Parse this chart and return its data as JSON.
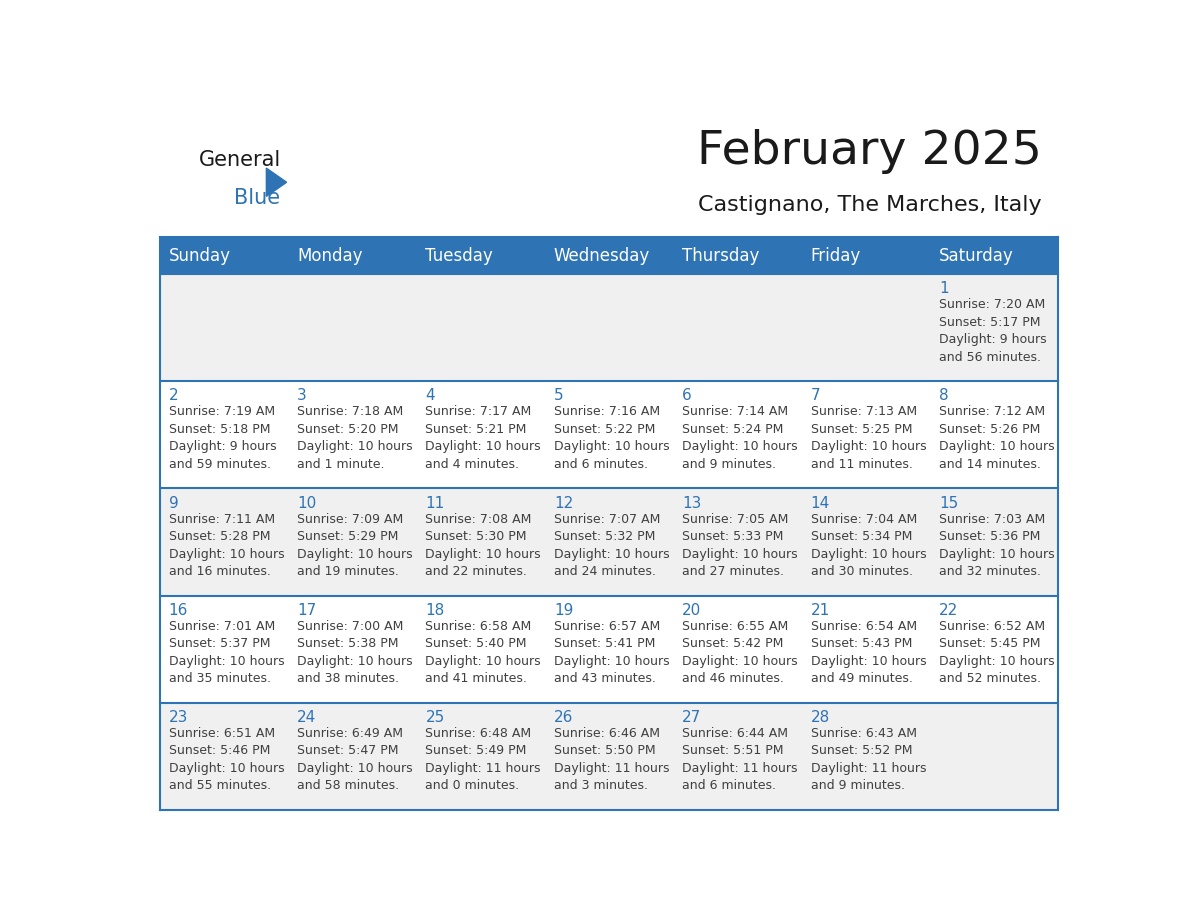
{
  "title": "February 2025",
  "subtitle": "Castignano, The Marches, Italy",
  "header_bg_color": "#2E74B5",
  "header_text_color": "#FFFFFF",
  "day_names": [
    "Sunday",
    "Monday",
    "Tuesday",
    "Wednesday",
    "Thursday",
    "Friday",
    "Saturday"
  ],
  "alt_row_color": "#F0F0F0",
  "white_row_color": "#FFFFFF",
  "border_color": "#2E74B5",
  "date_text_color": "#2E74B5",
  "info_text_color": "#404040",
  "title_color": "#1A1A1A",
  "subtitle_color": "#1A1A1A",
  "logo_general_color": "#1A1A1A",
  "logo_blue_color": "#2E74B5",
  "calendar_data": [
    [
      null,
      null,
      null,
      null,
      null,
      null,
      1
    ],
    [
      2,
      3,
      4,
      5,
      6,
      7,
      8
    ],
    [
      9,
      10,
      11,
      12,
      13,
      14,
      15
    ],
    [
      16,
      17,
      18,
      19,
      20,
      21,
      22
    ],
    [
      23,
      24,
      25,
      26,
      27,
      28,
      null
    ]
  ],
  "sunrise_data": {
    "1": "Sunrise: 7:20 AM\nSunset: 5:17 PM\nDaylight: 9 hours\nand 56 minutes.",
    "2": "Sunrise: 7:19 AM\nSunset: 5:18 PM\nDaylight: 9 hours\nand 59 minutes.",
    "3": "Sunrise: 7:18 AM\nSunset: 5:20 PM\nDaylight: 10 hours\nand 1 minute.",
    "4": "Sunrise: 7:17 AM\nSunset: 5:21 PM\nDaylight: 10 hours\nand 4 minutes.",
    "5": "Sunrise: 7:16 AM\nSunset: 5:22 PM\nDaylight: 10 hours\nand 6 minutes.",
    "6": "Sunrise: 7:14 AM\nSunset: 5:24 PM\nDaylight: 10 hours\nand 9 minutes.",
    "7": "Sunrise: 7:13 AM\nSunset: 5:25 PM\nDaylight: 10 hours\nand 11 minutes.",
    "8": "Sunrise: 7:12 AM\nSunset: 5:26 PM\nDaylight: 10 hours\nand 14 minutes.",
    "9": "Sunrise: 7:11 AM\nSunset: 5:28 PM\nDaylight: 10 hours\nand 16 minutes.",
    "10": "Sunrise: 7:09 AM\nSunset: 5:29 PM\nDaylight: 10 hours\nand 19 minutes.",
    "11": "Sunrise: 7:08 AM\nSunset: 5:30 PM\nDaylight: 10 hours\nand 22 minutes.",
    "12": "Sunrise: 7:07 AM\nSunset: 5:32 PM\nDaylight: 10 hours\nand 24 minutes.",
    "13": "Sunrise: 7:05 AM\nSunset: 5:33 PM\nDaylight: 10 hours\nand 27 minutes.",
    "14": "Sunrise: 7:04 AM\nSunset: 5:34 PM\nDaylight: 10 hours\nand 30 minutes.",
    "15": "Sunrise: 7:03 AM\nSunset: 5:36 PM\nDaylight: 10 hours\nand 32 minutes.",
    "16": "Sunrise: 7:01 AM\nSunset: 5:37 PM\nDaylight: 10 hours\nand 35 minutes.",
    "17": "Sunrise: 7:00 AM\nSunset: 5:38 PM\nDaylight: 10 hours\nand 38 minutes.",
    "18": "Sunrise: 6:58 AM\nSunset: 5:40 PM\nDaylight: 10 hours\nand 41 minutes.",
    "19": "Sunrise: 6:57 AM\nSunset: 5:41 PM\nDaylight: 10 hours\nand 43 minutes.",
    "20": "Sunrise: 6:55 AM\nSunset: 5:42 PM\nDaylight: 10 hours\nand 46 minutes.",
    "21": "Sunrise: 6:54 AM\nSunset: 5:43 PM\nDaylight: 10 hours\nand 49 minutes.",
    "22": "Sunrise: 6:52 AM\nSunset: 5:45 PM\nDaylight: 10 hours\nand 52 minutes.",
    "23": "Sunrise: 6:51 AM\nSunset: 5:46 PM\nDaylight: 10 hours\nand 55 minutes.",
    "24": "Sunrise: 6:49 AM\nSunset: 5:47 PM\nDaylight: 10 hours\nand 58 minutes.",
    "25": "Sunrise: 6:48 AM\nSunset: 5:49 PM\nDaylight: 11 hours\nand 0 minutes.",
    "26": "Sunrise: 6:46 AM\nSunset: 5:50 PM\nDaylight: 11 hours\nand 3 minutes.",
    "27": "Sunrise: 6:44 AM\nSunset: 5:51 PM\nDaylight: 11 hours\nand 6 minutes.",
    "28": "Sunrise: 6:43 AM\nSunset: 5:52 PM\nDaylight: 11 hours\nand 9 minutes."
  }
}
